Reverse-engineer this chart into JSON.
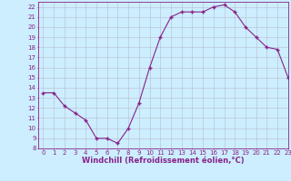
{
  "x": [
    0,
    1,
    2,
    3,
    4,
    5,
    6,
    7,
    8,
    9,
    10,
    11,
    12,
    13,
    14,
    15,
    16,
    17,
    18,
    19,
    20,
    21,
    22,
    23
  ],
  "y": [
    13.5,
    13.5,
    12.2,
    11.5,
    10.8,
    9.0,
    9.0,
    8.5,
    10.0,
    12.5,
    16.0,
    19.0,
    21.0,
    21.5,
    21.5,
    21.5,
    22.0,
    22.2,
    21.5,
    20.0,
    19.0,
    18.0,
    17.8,
    15.0
  ],
  "xlim": [
    -0.5,
    23
  ],
  "ylim": [
    8,
    22.5
  ],
  "xticks": [
    0,
    1,
    2,
    3,
    4,
    5,
    6,
    7,
    8,
    9,
    10,
    11,
    12,
    13,
    14,
    15,
    16,
    17,
    18,
    19,
    20,
    21,
    22,
    23
  ],
  "yticks": [
    8,
    9,
    10,
    11,
    12,
    13,
    14,
    15,
    16,
    17,
    18,
    19,
    20,
    21,
    22
  ],
  "xlabel": "Windchill (Refroidissement éolien,°C)",
  "line_color": "#882288",
  "marker": "+",
  "marker_size": 3.0,
  "bg_color": "#cceeff",
  "grid_color": "#bbbbcc",
  "tick_fontsize": 5.0,
  "label_fontsize": 6.0
}
